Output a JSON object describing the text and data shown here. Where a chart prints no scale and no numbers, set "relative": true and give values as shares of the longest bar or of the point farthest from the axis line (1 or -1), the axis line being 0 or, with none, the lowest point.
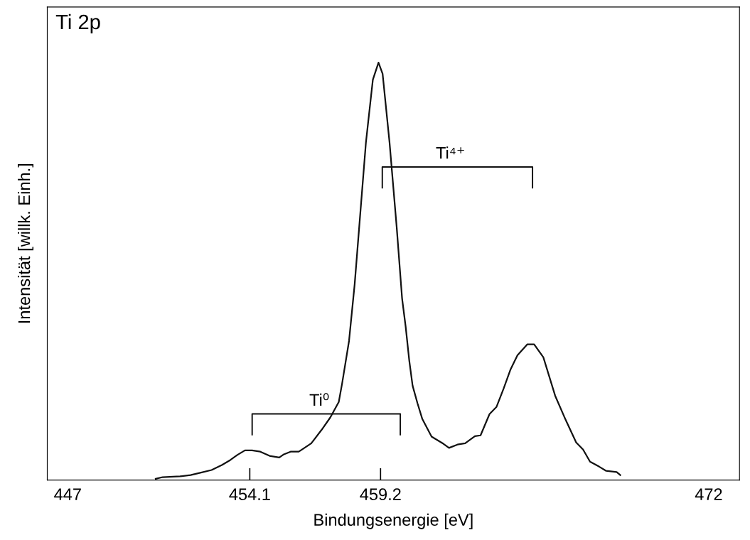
{
  "chart_data": {
    "type": "line",
    "title": "Ti 2p",
    "xlabel": "Bindungsenergie [eV]",
    "ylabel": "Intensität [willk. Einh.]",
    "relative": true,
    "xlim": [
      446.2,
      473.2
    ],
    "xticks": [
      447,
      454.1,
      459.2,
      472
    ],
    "grid": false,
    "legend": false,
    "marker": "none",
    "line_style": "solid",
    "series": [
      {
        "color": "#111111",
        "x": [
          450.43,
          450.7,
          451.38,
          451.79,
          452.14,
          452.61,
          453.01,
          453.34,
          453.61,
          453.91,
          454.19,
          454.51,
          454.87,
          455.25,
          455.41,
          455.69,
          456.01,
          456.18,
          456.5,
          456.91,
          457.24,
          457.57,
          457.7,
          457.97,
          458.19,
          458.41,
          458.63,
          458.9,
          459.12,
          459.28,
          459.55,
          459.83,
          460.04,
          460.18,
          460.32,
          460.45,
          460.64,
          460.83,
          461.19,
          461.65,
          461.87,
          462.2,
          462.5,
          462.88,
          463.1,
          463.45,
          463.72,
          464.0,
          464.27,
          464.54,
          464.92,
          465.19,
          465.55,
          466.01,
          466.37,
          466.83,
          467.1,
          467.37,
          467.73,
          468.0,
          468.41,
          468.55
        ],
        "values": [
          0.003,
          0.007,
          0.009,
          0.012,
          0.017,
          0.024,
          0.036,
          0.048,
          0.06,
          0.071,
          0.071,
          0.068,
          0.058,
          0.054,
          0.061,
          0.068,
          0.068,
          0.075,
          0.088,
          0.121,
          0.15,
          0.187,
          0.231,
          0.333,
          0.469,
          0.639,
          0.809,
          0.959,
          1.0,
          0.973,
          0.809,
          0.605,
          0.435,
          0.367,
          0.286,
          0.226,
          0.184,
          0.146,
          0.104,
          0.087,
          0.077,
          0.085,
          0.088,
          0.105,
          0.107,
          0.158,
          0.175,
          0.219,
          0.265,
          0.299,
          0.325,
          0.325,
          0.294,
          0.202,
          0.151,
          0.09,
          0.073,
          0.044,
          0.032,
          0.022,
          0.019,
          0.012
        ]
      }
    ],
    "annotations": [
      "Ti⁰",
      "Ti⁴⁺"
    ]
  }
}
